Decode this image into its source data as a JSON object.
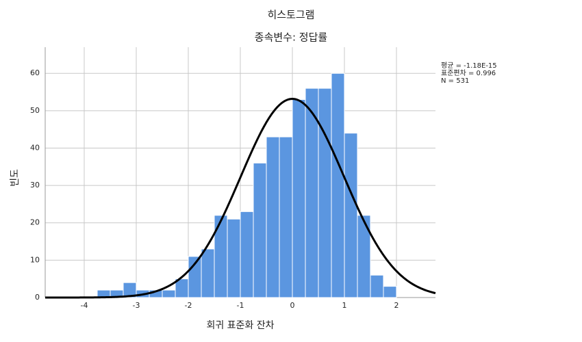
{
  "chart_data": {
    "type": "histogram",
    "title": "히스토그램",
    "subtitle": "종속변수: 정답률",
    "x_label": "회귀 표준화 잔차",
    "y_label": "빈도",
    "bins": [
      -3.75,
      -3.5,
      -3.25,
      -3.0,
      -2.75,
      -2.5,
      -2.25,
      -2.0,
      -1.75,
      -1.5,
      -1.25,
      -1.0,
      -0.75,
      -0.5,
      -0.25,
      0.0,
      0.25,
      0.5,
      0.75,
      1.0,
      1.25,
      1.5,
      1.75,
      2.0
    ],
    "values": [
      2,
      2,
      4,
      2,
      2,
      2,
      5,
      11,
      13,
      22,
      21,
      23,
      36,
      43,
      43,
      53,
      56,
      56,
      60,
      44,
      22,
      6,
      3
    ],
    "color": "#5b96e0",
    "xlim": [
      -4.75,
      2.75
    ],
    "xticks": [
      -4,
      -3,
      -2,
      -1,
      0,
      1,
      2
    ],
    "ylim": [
      0,
      67
    ],
    "yticks": [
      0,
      10,
      20,
      30,
      40,
      50,
      60
    ],
    "grid": true,
    "stats": [
      {
        "label": "평균 = -1.18E-15",
        "value": -1.18e-15
      },
      {
        "label": "표준편차 = 0.996",
        "value": 0.996
      },
      {
        "label": "N = 531",
        "value": 531
      }
    ],
    "curve_color": "#000000"
  }
}
